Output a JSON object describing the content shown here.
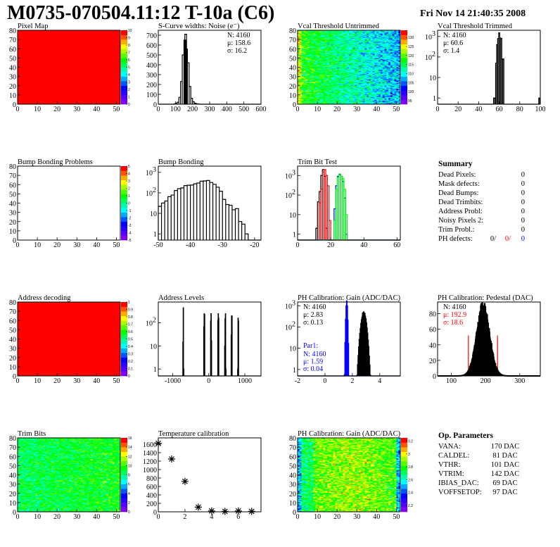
{
  "header": {
    "title": "M0735-070504.11:12 T-10a (C6)",
    "date": "Fri Nov 14 21:40:35 2008"
  },
  "palette": [
    "#7f00ff",
    "#5500ff",
    "#2a00ff",
    "#0000ff",
    "#0055ff",
    "#00aaff",
    "#00ffff",
    "#00ffaa",
    "#00ff55",
    "#00ff00",
    "#55ff00",
    "#aaff00",
    "#ffff00",
    "#ffaa00",
    "#ff5500",
    "#ff0000"
  ],
  "colors": {
    "black": "#000000",
    "red": "#ff0000",
    "blue": "#0000ff",
    "green": "#00ff00"
  },
  "chart_data": [
    {
      "id": "pixel-map",
      "type": "heatmap",
      "title": "Pixel Map",
      "xlim": [
        0,
        52
      ],
      "ylim": [
        0,
        80
      ],
      "xticks": [
        0,
        10,
        20,
        30,
        40,
        50
      ],
      "yticks": [
        0,
        10,
        20,
        30,
        40,
        50,
        60,
        70,
        80
      ],
      "zlim": [
        0,
        10
      ],
      "zticks": [
        "0",
        "1",
        "2",
        "3",
        "4",
        "5",
        "6",
        "7",
        "8",
        "9",
        "10"
      ],
      "fill": "uniform",
      "value": 10
    },
    {
      "id": "s-curve-widths",
      "type": "bar",
      "title": "S-Curve widths: Noise (e⁻)",
      "xlim": [
        0,
        600
      ],
      "ylim": [
        0,
        750
      ],
      "xticks": [
        0,
        100,
        200,
        300,
        400,
        500,
        600
      ],
      "yticks": [
        0,
        100,
        200,
        300,
        400,
        500,
        600,
        700
      ],
      "log": false,
      "stats": [
        "N: 4160",
        "μ: 158.6",
        "σ: 16.2"
      ],
      "series": [
        {
          "color": "#000000",
          "bins": [
            [
              95,
              2
            ],
            [
              105,
              10
            ],
            [
              115,
              20
            ],
            [
              125,
              70
            ],
            [
              135,
              230
            ],
            [
              145,
              500
            ],
            [
              155,
              650
            ],
            [
              160,
              710
            ],
            [
              165,
              560
            ],
            [
              175,
              420
            ],
            [
              185,
              180
            ],
            [
              195,
              60
            ],
            [
              205,
              25
            ],
            [
              215,
              10
            ],
            [
              225,
              5
            ],
            [
              235,
              2
            ]
          ],
          "width": 10
        }
      ]
    },
    {
      "id": "vcal-threshold-untrimmed",
      "type": "heatmap",
      "title": "Vcal Threshold Untrimmed",
      "xlim": [
        0,
        52
      ],
      "ylim": [
        0,
        80
      ],
      "xticks": [
        0,
        10,
        20,
        30,
        40,
        50
      ],
      "yticks": [
        0,
        10,
        20,
        30,
        40,
        50,
        60,
        70,
        80
      ],
      "zlim": [
        93,
        134
      ],
      "zticks": [
        "95",
        "100",
        "105",
        "110",
        "115",
        "120",
        "125",
        "130"
      ],
      "zvals": [
        95,
        100,
        105,
        110,
        115,
        120,
        125,
        130
      ],
      "fill": "gradient",
      "left": 118,
      "right": 107,
      "noise": 5
    },
    {
      "id": "vcal-threshold-trimmed",
      "type": "bar",
      "title": "Vcal Threshold Trimmed",
      "xlim": [
        0,
        100
      ],
      "ylim": [
        0.5,
        2000
      ],
      "xticks": [
        0,
        20,
        40,
        60,
        80,
        100
      ],
      "yticks": [
        1,
        10,
        100,
        1000
      ],
      "log": true,
      "stats": [
        "N: 4160",
        "μ: 60.6",
        "σ:  1.4"
      ],
      "series": [
        {
          "color": "#000000",
          "width": 1,
          "bins": [
            [
              55,
              1
            ],
            [
              56,
              1
            ],
            [
              57,
              50
            ],
            [
              58,
              400
            ],
            [
              59,
              800
            ],
            [
              60,
              1500
            ],
            [
              61,
              850
            ],
            [
              62,
              800
            ],
            [
              63,
              80
            ],
            [
              64,
              80
            ],
            [
              99,
              1
            ]
          ]
        }
      ]
    },
    {
      "id": "bump-bonding-problems",
      "type": "heatmap",
      "title": "Bump Bonding Problems",
      "xlim": [
        0,
        52
      ],
      "ylim": [
        0,
        80
      ],
      "xticks": [
        0,
        10,
        20,
        30,
        40,
        50
      ],
      "yticks": [
        0,
        10,
        20,
        30,
        40,
        50,
        60,
        70,
        80
      ],
      "zlim": [
        -5,
        5
      ],
      "zticks": [
        "-5",
        "-4",
        "-3",
        "-2",
        "-1",
        "0",
        "1",
        "2",
        "3",
        "4",
        "5"
      ],
      "fill": "empty"
    },
    {
      "id": "bump-bonding",
      "type": "bar",
      "title": "Bump Bonding",
      "xlim": [
        -50,
        -18
      ],
      "ylim": [
        0.5,
        2000
      ],
      "xticks": [
        -50,
        -40,
        -30,
        -20
      ],
      "yticks": [
        1,
        10,
        100,
        1000
      ],
      "log": true,
      "series": [
        {
          "color": "#000000",
          "width": 1,
          "bins": [
            [
              -49.5,
              22
            ],
            [
              -48.5,
              32
            ],
            [
              -47.5,
              40
            ],
            [
              -46.5,
              65
            ],
            [
              -45.5,
              78
            ],
            [
              -44.5,
              130
            ],
            [
              -43.5,
              160
            ],
            [
              -42.5,
              175
            ],
            [
              -41.5,
              225
            ],
            [
              -40.5,
              235
            ],
            [
              -39.5,
              240
            ],
            [
              -38.5,
              275
            ],
            [
              -37.5,
              300
            ],
            [
              -36.5,
              370
            ],
            [
              -35.5,
              380
            ],
            [
              -34.5,
              400
            ],
            [
              -33.5,
              320
            ],
            [
              -32.5,
              260
            ],
            [
              -31.5,
              190
            ],
            [
              -30.5,
              120
            ],
            [
              -29.5,
              48
            ],
            [
              -28.5,
              27
            ],
            [
              -27.5,
              25
            ],
            [
              -26.5,
              15
            ],
            [
              -25.5,
              17
            ],
            [
              -24.5,
              4
            ],
            [
              -23.5,
              3
            ],
            [
              -22.5,
              1
            ]
          ]
        }
      ]
    },
    {
      "id": "trim-bit-test",
      "type": "bar",
      "title": "Trim Bit Test",
      "xlim": [
        0,
        62
      ],
      "ylim": [
        0.5,
        3000
      ],
      "xticks": [
        0,
        20,
        40,
        60
      ],
      "yticks": [
        1,
        10,
        100,
        1000
      ],
      "log": true,
      "series": [
        {
          "color": "#000000",
          "width": 1,
          "bins": [
            [
              11.5,
              2
            ],
            [
              12.5,
              45
            ],
            [
              13.5,
              150
            ],
            [
              14.5,
              1000
            ],
            [
              15.5,
              2000
            ],
            [
              16.5,
              900
            ],
            [
              17.5,
              2
            ]
          ]
        },
        {
          "color": "#ff0000",
          "width": 1,
          "bins": [
            [
              13.5,
              40
            ],
            [
              14.5,
              200
            ],
            [
              15.5,
              1500
            ],
            [
              16.5,
              2000
            ],
            [
              17.5,
              1000
            ],
            [
              18.5,
              300
            ],
            [
              19.5,
              5
            ]
          ]
        },
        {
          "color": "#0000ff",
          "width": 1,
          "bins": [
            [
              22.5,
              20
            ],
            [
              23.5,
              300
            ],
            [
              24.5,
              900
            ],
            [
              25.5,
              1100
            ],
            [
              26.5,
              900
            ],
            [
              27.5,
              500
            ],
            [
              28.5,
              70
            ],
            [
              29.5,
              1
            ]
          ]
        },
        {
          "color": "#00ff00",
          "width": 1,
          "bins": [
            [
              22.5,
              5
            ],
            [
              23.5,
              200
            ],
            [
              24.5,
              800
            ],
            [
              25.5,
              1200
            ],
            [
              26.5,
              900
            ],
            [
              27.5,
              700
            ],
            [
              28.5,
              200
            ],
            [
              29.5,
              10
            ]
          ]
        }
      ]
    },
    {
      "id": "summary",
      "type": "table",
      "title": "Summary",
      "rows": [
        {
          "label": "Dead Pixels:",
          "value": "0"
        },
        {
          "label": "Mask defects:",
          "value": "0"
        },
        {
          "label": "Dead Bumps:",
          "value": "0"
        },
        {
          "label": "Dead Trimbits:",
          "value": "0"
        },
        {
          "label": "Address Probl:",
          "value": "0"
        },
        {
          "label": "Noisy Pixels 2:",
          "value": "0"
        },
        {
          "label": "Trim Probl.:",
          "value": "0"
        }
      ],
      "ph_defects": {
        "label": "PH defects:",
        "values": [
          "0/",
          "0/",
          "0"
        ]
      }
    },
    {
      "id": "address-decoding",
      "type": "heatmap",
      "title": "Address decoding",
      "xlim": [
        0,
        52
      ],
      "ylim": [
        0,
        80
      ],
      "xticks": [
        0,
        10,
        20,
        30,
        40,
        50
      ],
      "yticks": [
        0,
        10,
        20,
        30,
        40,
        50,
        60,
        70,
        80
      ],
      "zlim": [
        0,
        1
      ],
      "zticks": [
        "0",
        "0.1",
        "0.2",
        "0.3",
        "0.4",
        "0.5",
        "0.6",
        "0.7",
        "0.8",
        "0.9",
        "1"
      ],
      "fill": "uniform",
      "value": 1
    },
    {
      "id": "address-levels",
      "type": "bar",
      "title": "Address Levels",
      "xlim": [
        -1400,
        1450
      ],
      "ylim": [
        0.5,
        800
      ],
      "xticks": [
        -1000,
        0,
        1000
      ],
      "yticks": [
        1,
        10,
        100
      ],
      "log": true,
      "series": [
        {
          "color": "#000000",
          "width": 10,
          "bins": [
            [
              -715,
              15
            ],
            [
              -705,
              450
            ],
            [
              -695,
              1
            ],
            [
              -135,
              70
            ],
            [
              -125,
              250
            ],
            [
              -115,
              230
            ],
            [
              55,
              120
            ],
            [
              65,
              250
            ],
            [
              75,
              17
            ],
            [
              255,
              130
            ],
            [
              265,
              250
            ],
            [
              275,
              160
            ],
            [
              445,
              10
            ],
            [
              455,
              150
            ],
            [
              465,
              250
            ],
            [
              475,
              1
            ],
            [
              625,
              30
            ],
            [
              635,
              200
            ],
            [
              645,
              200
            ],
            [
              805,
              1
            ],
            [
              815,
              160
            ],
            [
              825,
              120
            ]
          ]
        }
      ]
    },
    {
      "id": "ph-calibration-gain-1d",
      "type": "bar",
      "title": "PH Calibration: Gain (ADC/DAC)",
      "xlim": [
        -2,
        5.5
      ],
      "ylim": [
        0.5,
        1500
      ],
      "xticks": [
        -2,
        0,
        2,
        4
      ],
      "yticks": [
        1,
        10,
        100,
        1000
      ],
      "log": true,
      "stats": [
        "N: 4160",
        "μ: 2.83",
        "σ: 0.13"
      ],
      "stats2": {
        "title": "Par1:",
        "lines": [
          "N: 4160",
          "μ: 1.59",
          "σ: 0.04"
        ]
      },
      "series": [
        {
          "color": "#0000ff",
          "gauss": {
            "n": 4160,
            "mu": 1.59,
            "sigma": 0.04
          },
          "width": 0.04
        },
        {
          "color": "#000000",
          "gauss": {
            "n": 4160,
            "mu": 2.83,
            "sigma": 0.13
          },
          "width": 0.04
        }
      ]
    },
    {
      "id": "ph-calibration-pedestal",
      "type": "bar",
      "title": "PH Calibration: Pedestal (DAC)",
      "xlim": [
        60,
        360
      ],
      "ylim": [
        0,
        95
      ],
      "xticks": [
        100,
        200,
        300
      ],
      "yticks": [
        0,
        20,
        40,
        60,
        80
      ],
      "log": false,
      "stats": [
        "N: 4160",
        "μ: 192.9",
        "σ: 18.6"
      ],
      "series": [
        {
          "color": "#000000",
          "gauss": {
            "n": 4160,
            "mu": 192.9,
            "sigma": 18.6
          },
          "width": 1,
          "thick": true
        }
      ],
      "hatched": {
        "color": "#ff0000",
        "range": [
          150,
          235
        ]
      }
    },
    {
      "id": "trim-bits",
      "type": "heatmap",
      "title": "Trim Bits",
      "xlim": [
        0,
        52
      ],
      "ylim": [
        0,
        80
      ],
      "xticks": [
        0,
        10,
        20,
        30,
        40,
        50
      ],
      "yticks": [
        0,
        10,
        20,
        30,
        40,
        50,
        60,
        70,
        80
      ],
      "zlim": [
        0,
        16
      ],
      "zticks": [
        "0",
        "2",
        "4",
        "6",
        "8",
        "10",
        "12",
        "14",
        "16"
      ],
      "fill": "gradient",
      "left": 8.5,
      "right": 9.5,
      "noise": 1.6
    },
    {
      "id": "temperature-calibration",
      "type": "scatter",
      "title": "Temperature calibration",
      "xlim": [
        0,
        7.7
      ],
      "ylim": [
        0,
        1750
      ],
      "xticks": [
        0,
        2,
        4,
        6
      ],
      "yticks": [
        0,
        200,
        400,
        600,
        800,
        1000,
        1200,
        1400,
        1600
      ],
      "points": [
        [
          0,
          1620
        ],
        [
          1,
          1250
        ],
        [
          2,
          720
        ],
        [
          3,
          110
        ],
        [
          4,
          20
        ],
        [
          5,
          10
        ],
        [
          6,
          20
        ],
        [
          7,
          10
        ]
      ]
    },
    {
      "id": "ph-calibration-gain-map",
      "type": "heatmap",
      "title": "PH Calibration: Gain (ADC/DAC)",
      "xlim": [
        0,
        52
      ],
      "ylim": [
        0,
        80
      ],
      "xticks": [
        0,
        10,
        20,
        30,
        40,
        50
      ],
      "yticks": [
        0,
        10,
        20,
        30,
        40,
        50,
        60,
        70,
        80
      ],
      "zlim": [
        2.1,
        3.25
      ],
      "zticks": [
        "2.2",
        "2.4",
        "2.6",
        "2.8",
        "3",
        "3.2"
      ],
      "zvals": [
        2.2,
        2.4,
        2.6,
        2.8,
        3.0,
        3.2
      ],
      "fill": "gain",
      "center": 2.92,
      "noise": 0.09
    },
    {
      "id": "op-parameters",
      "type": "table",
      "title": "Op. Parameters",
      "rows": [
        {
          "label": "VANA:",
          "value": "170 DAC"
        },
        {
          "label": "CALDEL:",
          "value": "81 DAC"
        },
        {
          "label": "VTHR:",
          "value": "101 DAC"
        },
        {
          "label": "VTRIM:",
          "value": "142 DAC"
        },
        {
          "label": "IBIAS_DAC:",
          "value": "69 DAC"
        },
        {
          "label": "VOFFSETOP:",
          "value": "97 DAC"
        }
      ]
    }
  ]
}
